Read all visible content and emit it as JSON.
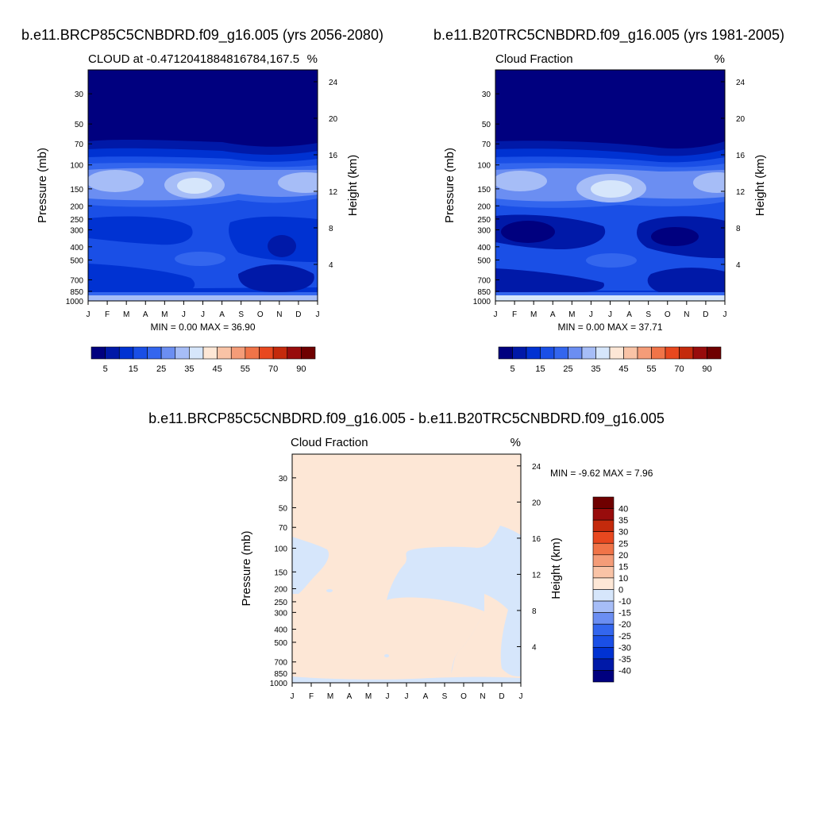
{
  "chart_data": [
    {
      "type": "heatmap",
      "title": "b.e11.BRCP85C5CNBDRD.f09_g16.005 (yrs 2056-2080)",
      "subtitle_left": "CLOUD at -0.4712041884816784,167.5",
      "subtitle_right": "%",
      "ylabel": "Pressure (mb)",
      "ylabel_right": "Height (km)",
      "x_ticks": [
        "J",
        "F",
        "M",
        "A",
        "M",
        "J",
        "J",
        "A",
        "S",
        "O",
        "N",
        "D",
        "J"
      ],
      "y_ticks": [
        "30",
        "50",
        "70",
        "100",
        "150",
        "200",
        "250",
        "300",
        "400",
        "500",
        "700",
        "850",
        "1000"
      ],
      "y_ticks_right": [
        "24",
        "20",
        "16",
        "12",
        "8",
        "4"
      ],
      "min_max": "MIN =   0.00 MAX =  36.90",
      "colorbar_labels": [
        "5",
        "15",
        "25",
        "35",
        "45",
        "55",
        "70",
        "90"
      ],
      "levels": [
        5,
        10,
        15,
        20,
        25,
        30,
        35,
        40,
        45,
        50,
        55,
        60,
        70,
        80,
        90
      ]
    },
    {
      "type": "heatmap",
      "title": "b.e11.B20TRC5CNBDRD.f09_g16.005 (yrs 1981-2005)",
      "subtitle_left": "Cloud Fraction",
      "subtitle_right": "%",
      "ylabel": "Pressure (mb)",
      "ylabel_right": "Height (km)",
      "x_ticks": [
        "J",
        "F",
        "M",
        "A",
        "M",
        "J",
        "J",
        "A",
        "S",
        "O",
        "N",
        "D",
        "J"
      ],
      "y_ticks": [
        "30",
        "50",
        "70",
        "100",
        "150",
        "200",
        "250",
        "300",
        "400",
        "500",
        "700",
        "850",
        "1000"
      ],
      "y_ticks_right": [
        "24",
        "20",
        "16",
        "12",
        "8",
        "4"
      ],
      "min_max": "MIN =   0.00 MAX =  37.71",
      "colorbar_labels": [
        "5",
        "15",
        "25",
        "35",
        "45",
        "55",
        "70",
        "90"
      ],
      "levels": [
        5,
        10,
        15,
        20,
        25,
        30,
        35,
        40,
        45,
        50,
        55,
        60,
        70,
        80,
        90
      ]
    },
    {
      "type": "heatmap",
      "title": "b.e11.BRCP85C5CNBDRD.f09_g16.005 - b.e11.B20TRC5CNBDRD.f09_g16.005",
      "subtitle_left": "Cloud Fraction",
      "subtitle_right": "%",
      "ylabel": "Pressure (mb)",
      "ylabel_right": "Height (km)",
      "x_ticks": [
        "J",
        "F",
        "M",
        "A",
        "M",
        "J",
        "J",
        "A",
        "S",
        "O",
        "N",
        "D",
        "J"
      ],
      "y_ticks": [
        "30",
        "50",
        "70",
        "100",
        "150",
        "200",
        "250",
        "300",
        "400",
        "500",
        "700",
        "850",
        "1000"
      ],
      "y_ticks_right": [
        "24",
        "20",
        "16",
        "12",
        "8",
        "4"
      ],
      "min_max": "MIN =  -9.62 MAX =   7.96",
      "colorbar_labels": [
        "40",
        "35",
        "30",
        "25",
        "20",
        "15",
        "10",
        "0",
        "-10",
        "-15",
        "-20",
        "-25",
        "-30",
        "-35",
        "-40"
      ],
      "levels": [
        -40,
        -35,
        -30,
        -25,
        -20,
        -15,
        -10,
        0,
        10,
        15,
        20,
        25,
        30,
        35,
        40
      ]
    }
  ],
  "colors": {
    "abs_scale": [
      "#00007f",
      "#0019a8",
      "#0032d2",
      "#1a4fe6",
      "#3366ee",
      "#6b8ef2",
      "#a6bdf7",
      "#d6e6fb",
      "#fde7d6",
      "#f9c3a6",
      "#f49c78",
      "#f07448",
      "#e8481f",
      "#c42a0c",
      "#980c0c",
      "#6f0000"
    ],
    "diff_scale": [
      "#00007f",
      "#0019a8",
      "#0032d2",
      "#1a4fe6",
      "#3366ee",
      "#6b8ef2",
      "#a6bdf7",
      "#d6e6fb",
      "#fde7d6",
      "#f9c3a6",
      "#f49c78",
      "#f07448",
      "#e8481f",
      "#c42a0c",
      "#980c0c",
      "#6f0000"
    ]
  }
}
